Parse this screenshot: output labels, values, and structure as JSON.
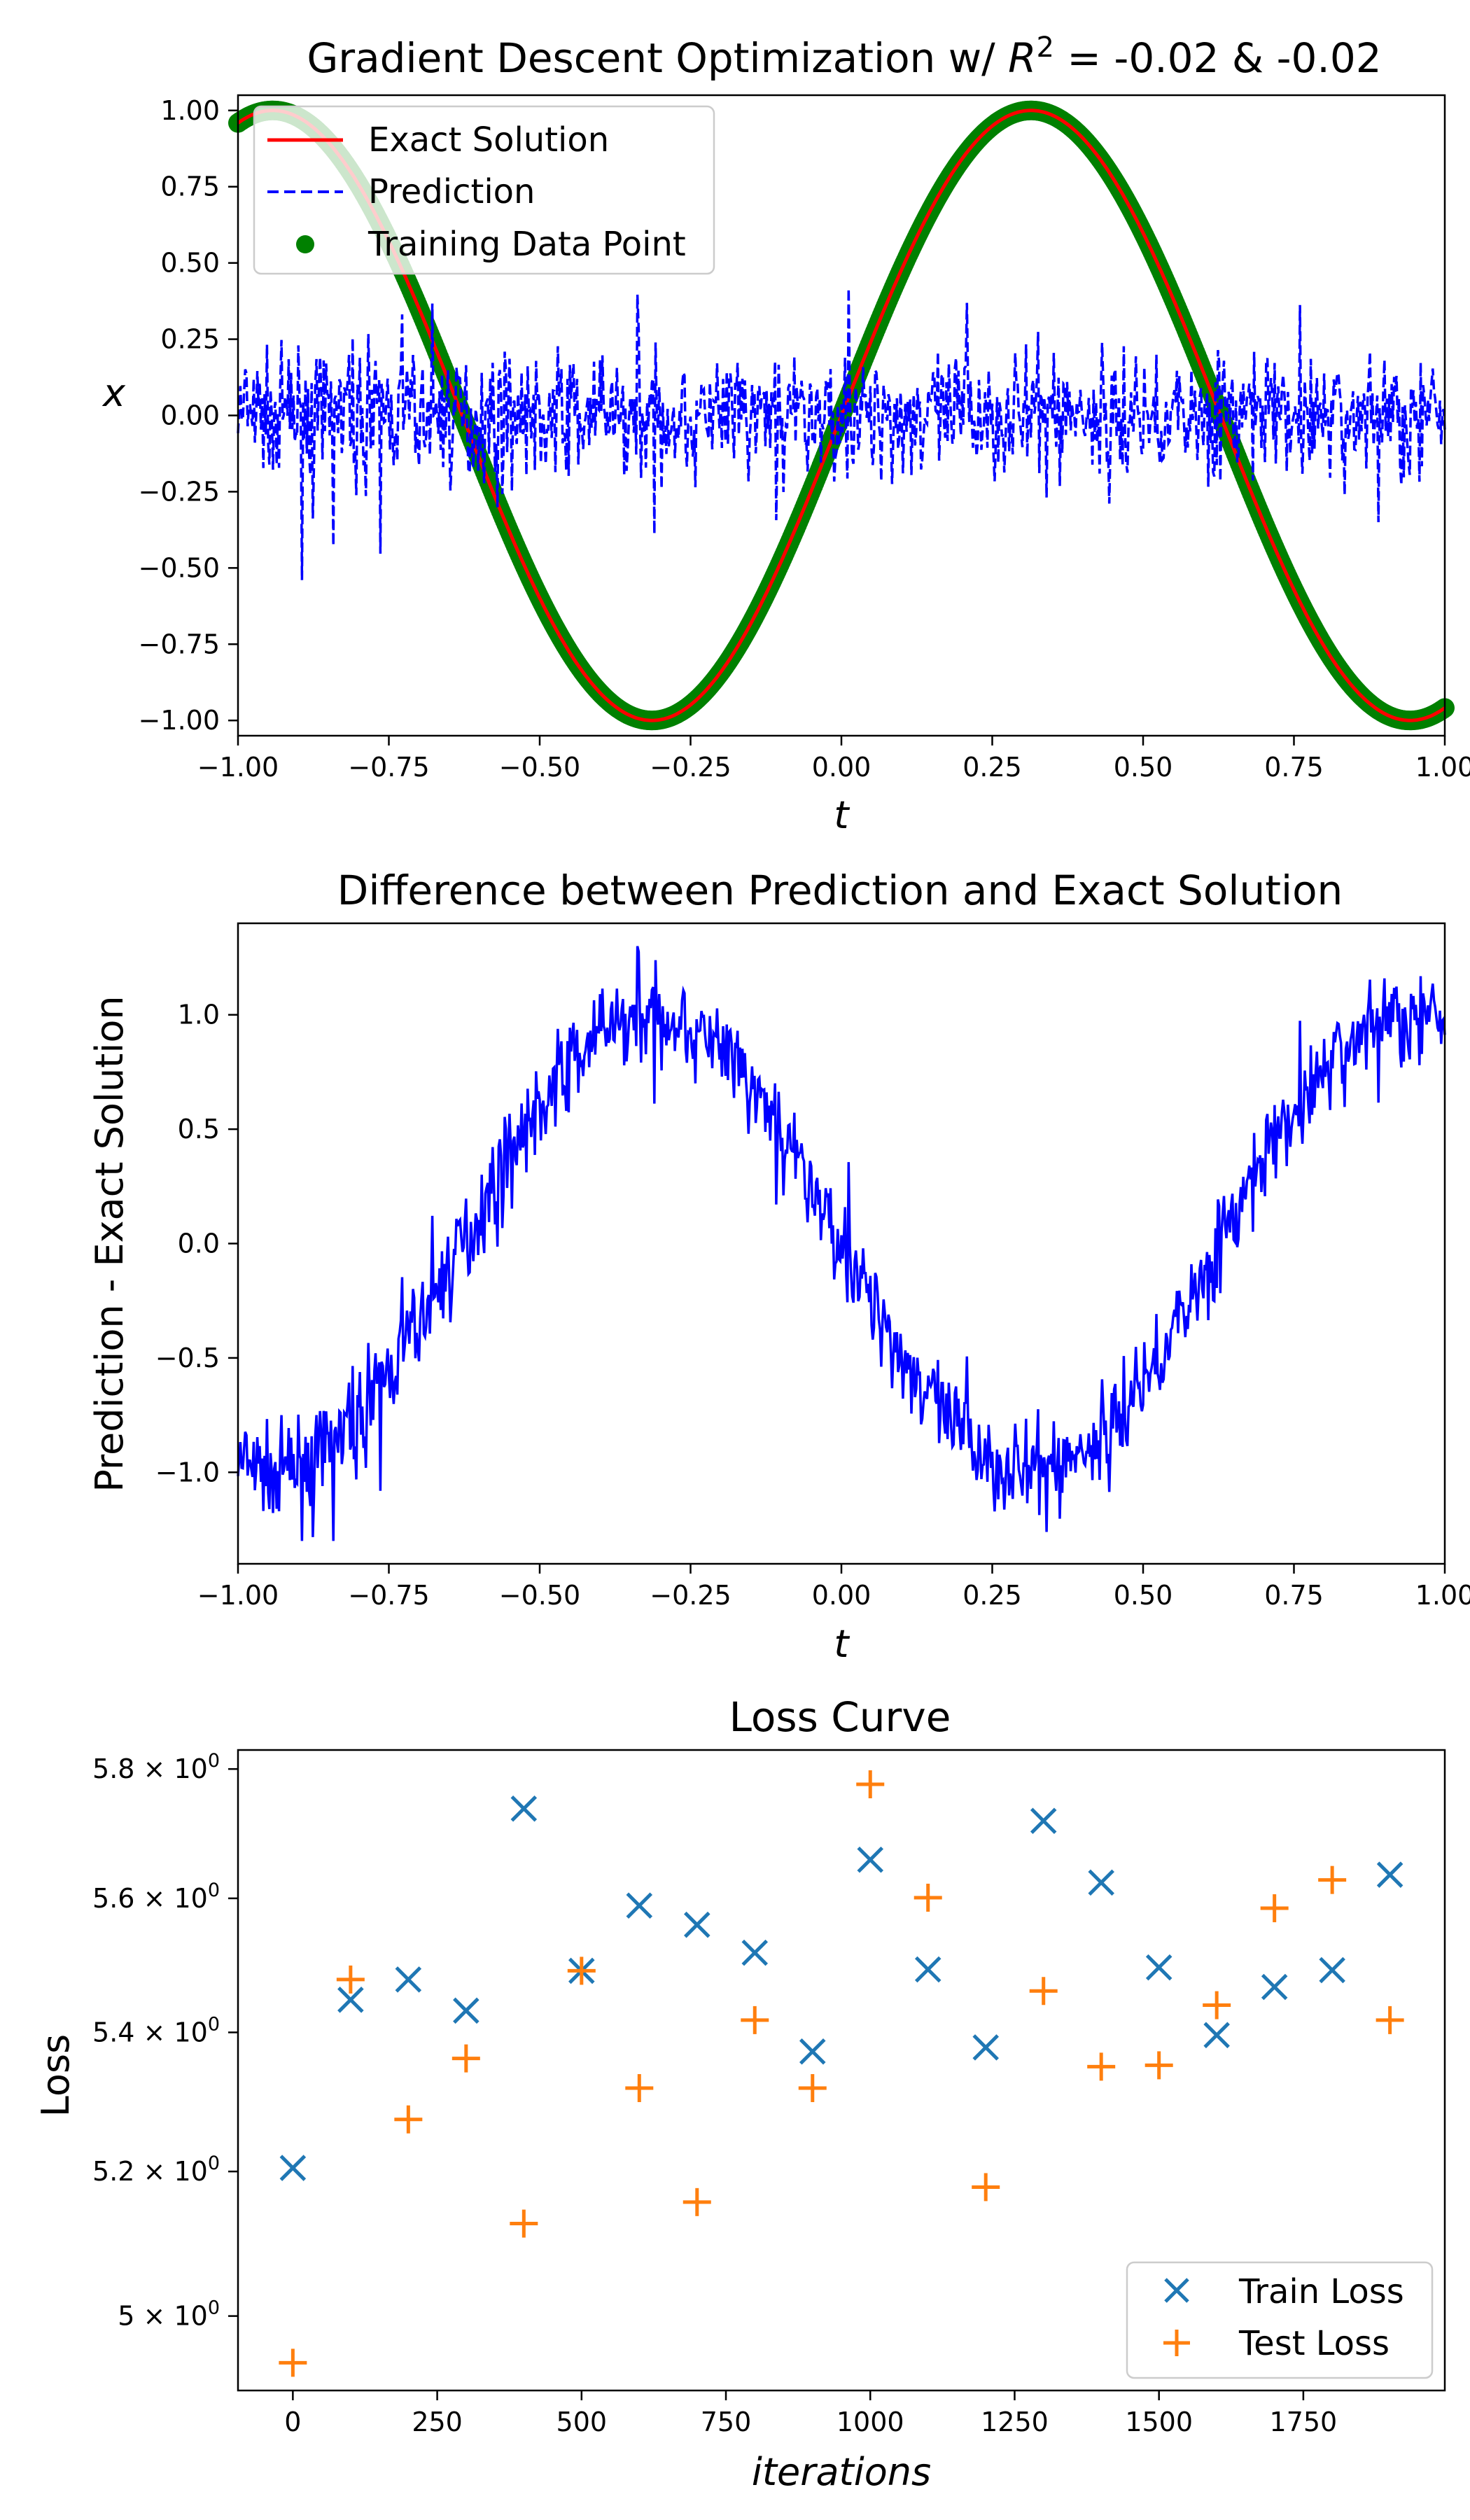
{
  "chart_data": [
    {
      "type": "line",
      "title": "Gradient Descent Optimization w/ R² = -0.02 & -0.02",
      "title_prefix": "Gradient Descent Optimization w/ ",
      "title_r": "R",
      "title_sup": "2",
      "title_suffix": " = -0.02 & -0.02",
      "xlabel": "t",
      "ylabel": "x",
      "xlim": [
        -1.0,
        1.0
      ],
      "ylim": [
        -1.05,
        1.05
      ],
      "xticks": [
        "−1.00",
        "−0.75",
        "−0.50",
        "−0.25",
        "0.00",
        "0.25",
        "0.50",
        "0.75",
        "1.00"
      ],
      "yticks": [
        "1.00",
        "0.75",
        "0.50",
        "0.25",
        "0.00",
        "−0.25",
        "−0.50",
        "−0.75",
        "−1.00"
      ],
      "legend_position": "top-left",
      "series": [
        {
          "name": "Exact Solution",
          "style": "solid",
          "color": "#ff0000",
          "function": "x = sin(5t)"
        },
        {
          "name": "Prediction",
          "style": "dashed",
          "color": "#0000ff",
          "approx_mean": 0.0,
          "approx_range": [
            -0.35,
            0.45
          ]
        },
        {
          "name": "Training Data Point",
          "style": "scatter",
          "color": "#008000",
          "function": "x = sin(5t)"
        }
      ]
    },
    {
      "type": "line",
      "title": "Difference between Prediction and Exact Solution",
      "xlabel": "t",
      "ylabel": "Prediction - Exact Solution",
      "xlim": [
        -1.0,
        1.0
      ],
      "ylim": [
        -1.4,
        1.4
      ],
      "xticks": [
        "−1.00",
        "−0.75",
        "−0.50",
        "−0.25",
        "0.00",
        "0.25",
        "0.50",
        "0.75",
        "1.00"
      ],
      "yticks": [
        "1.0",
        "0.5",
        "0.0",
        "−0.5",
        "−1.0"
      ],
      "series": [
        {
          "style": "solid",
          "color": "#0000ff",
          "function": "-sin(5t) + noise",
          "approx_range": [
            -1.3,
            1.3
          ]
        }
      ]
    },
    {
      "type": "scatter",
      "title": "Loss Curve",
      "xlabel": "iterations",
      "ylabel": "Loss",
      "yscale": "log",
      "xlim": [
        -95,
        1995
      ],
      "ylim": [
        4.9,
        5.83
      ],
      "xticks": [
        "0",
        "250",
        "500",
        "750",
        "1000",
        "1250",
        "1500",
        "1750"
      ],
      "yticks": [
        {
          "mant": "5.8",
          "exp": "0"
        },
        {
          "mant": "5.6",
          "exp": "0"
        },
        {
          "mant": "5.4",
          "exp": "0"
        },
        {
          "mant": "5.2",
          "exp": "0"
        },
        {
          "mant": "5",
          "exp": "0"
        }
      ],
      "legend_position": "bottom-right",
      "x": [
        0,
        100,
        200,
        300,
        400,
        500,
        600,
        700,
        800,
        900,
        1000,
        1100,
        1200,
        1300,
        1400,
        1500,
        1600,
        1700,
        1800,
        1900
      ],
      "series": [
        {
          "name": "Train Loss",
          "marker": "x",
          "color": "#1f77b4",
          "values": [
            5.205,
            5.448,
            5.478,
            5.432,
            5.738,
            5.491,
            5.589,
            5.56,
            5.518,
            5.372,
            5.659,
            5.493,
            5.378,
            5.719,
            5.624,
            5.496,
            5.396,
            5.467,
            5.492,
            5.636
          ]
        },
        {
          "name": "Test Loss",
          "marker": "+",
          "color": "#ff7f0e",
          "values": [
            4.937,
            5.478,
            5.274,
            5.362,
            5.127,
            5.491,
            5.319,
            5.157,
            5.418,
            5.319,
            5.776,
            5.601,
            5.178,
            5.461,
            5.35,
            5.352,
            5.44,
            5.585,
            5.628,
            5.418
          ]
        }
      ]
    }
  ]
}
